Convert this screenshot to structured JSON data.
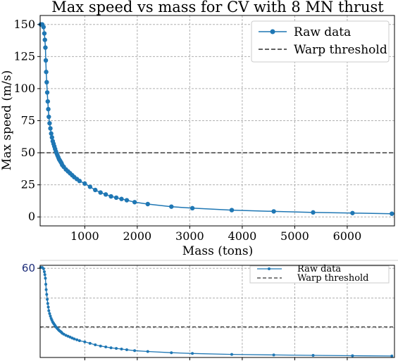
{
  "chart_data": [
    {
      "type": "line",
      "title": "Max speed vs mass for CV with 8 MN thrust",
      "xlabel": "Mass (tons)",
      "ylabel": "Max speed (m/s)",
      "xlim": [
        150,
        6900
      ],
      "ylim": [
        -7,
        157
      ],
      "xticks": [
        1000,
        2000,
        3000,
        4000,
        5000,
        6000
      ],
      "xtick_labels": [
        "1000",
        "2000",
        "3000",
        "4000",
        "5000",
        "6000"
      ],
      "yticks": [
        0,
        25,
        50,
        75,
        100,
        125,
        150
      ],
      "ytick_labels": [
        "0",
        "25",
        "50",
        "75",
        "100",
        "125",
        "150"
      ],
      "grid": true,
      "legend_position": "top-right",
      "legend": [
        "Raw data",
        "Warp threshold"
      ],
      "color": "#1f77b4",
      "threshold_y": 50,
      "series": [
        {
          "name": "Raw data",
          "x": [
            160,
            190,
            215,
            230,
            240,
            250,
            258,
            265,
            275,
            285,
            295,
            305,
            315,
            330,
            345,
            360,
            375,
            390,
            405,
            420,
            435,
            450,
            465,
            480,
            495,
            510,
            525,
            540,
            555,
            570,
            600,
            640,
            680,
            720,
            760,
            800,
            850,
            900,
            1000,
            1100,
            1200,
            1300,
            1400,
            1500,
            1600,
            1700,
            1800,
            1950,
            2200,
            2650,
            3050,
            3800,
            4600,
            5350,
            6100,
            6850
          ],
          "y": [
            150,
            150,
            148,
            143,
            138,
            132,
            122,
            113,
            105,
            97,
            90,
            84,
            78,
            73,
            69,
            65,
            62,
            59,
            57,
            55,
            53,
            51,
            49.5,
            48,
            46.5,
            45,
            44,
            43,
            42,
            40.5,
            39,
            37,
            35.5,
            34,
            32.5,
            31,
            29.5,
            28,
            26,
            23.5,
            21,
            19,
            17.5,
            16,
            15,
            14,
            13,
            11.5,
            10,
            8,
            6.8,
            5.3,
            4.3,
            3.5,
            3,
            2.5
          ]
        }
      ]
    },
    {
      "type": "line",
      "xlim": [
        150,
        6900
      ],
      "ylim": [
        0,
        62
      ],
      "yticks": [
        60
      ],
      "ytick_labels": [
        "60"
      ],
      "xticks": [
        1000,
        2000,
        3000,
        4000,
        5000,
        6000
      ],
      "grid": true,
      "legend_position": "top-right",
      "legend": [
        "Raw data",
        "Warp threshold"
      ],
      "color": "#1f77b4",
      "threshold_y": 20.5,
      "series": [
        {
          "name": "Raw data",
          "x": [
            160,
            190,
            215,
            230,
            240,
            250,
            258,
            265,
            275,
            285,
            295,
            305,
            315,
            330,
            345,
            360,
            375,
            390,
            405,
            420,
            435,
            450,
            465,
            480,
            495,
            510,
            525,
            540,
            555,
            570,
            600,
            640,
            680,
            720,
            760,
            800,
            850,
            900,
            1000,
            1100,
            1200,
            1300,
            1400,
            1500,
            1600,
            1700,
            1800,
            1950,
            2200,
            2650,
            3050,
            3800,
            4600,
            5350,
            6100,
            6850
          ],
          "y": [
            60.5,
            60.5,
            59.7,
            57.7,
            55.7,
            53.3,
            49.2,
            45.6,
            42.4,
            39.1,
            36.3,
            33.9,
            31.5,
            29.5,
            27.8,
            26.2,
            25,
            23.8,
            23,
            22.2,
            21.4,
            20.6,
            20,
            19.4,
            18.8,
            18.2,
            17.8,
            17.4,
            17,
            16.3,
            15.7,
            14.9,
            14.3,
            13.7,
            13.1,
            12.5,
            11.9,
            11.3,
            10.5,
            9.5,
            8.5,
            7.7,
            7.1,
            6.5,
            6.1,
            5.7,
            5.2,
            4.6,
            4,
            3.2,
            2.7,
            2.1,
            1.7,
            1.4,
            1.2,
            1
          ]
        }
      ]
    }
  ]
}
